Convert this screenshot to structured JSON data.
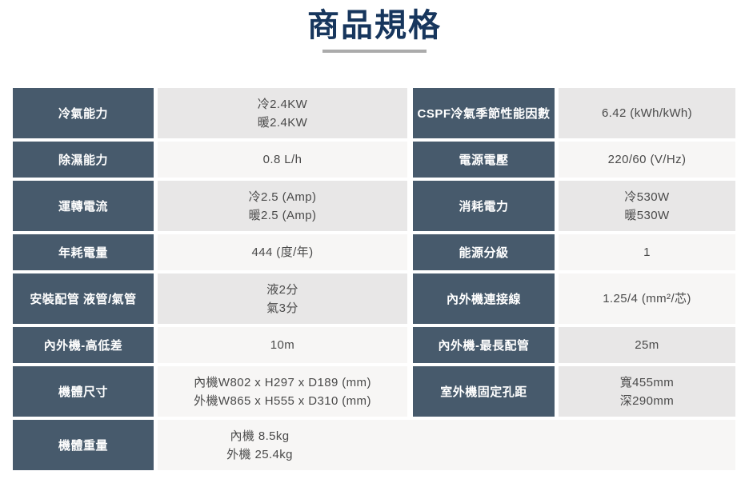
{
  "title": "商品規格",
  "colors": {
    "title_color": "#17365d",
    "divider": "#ababab",
    "header_bg": "#475a6c",
    "header_text": "#ffffff",
    "row_gray": "#e8e7e7",
    "row_light": "#f7f6f5",
    "value_text": "#4a4a4a"
  },
  "spec_table": {
    "rows": [
      {
        "size": "tall",
        "left": {
          "label": "冷氣能力",
          "value": [
            "冷2.4KW",
            "暖2.4KW"
          ],
          "bg": "gray"
        },
        "right": {
          "label": "CSPF冷氣季節性能因數",
          "value": [
            "6.42 (kWh/kWh)"
          ],
          "bg": "gray"
        }
      },
      {
        "size": "short",
        "left": {
          "label": "除濕能力",
          "value": [
            "0.8 L/h"
          ],
          "bg": "light"
        },
        "right": {
          "label": "電源電壓",
          "value": [
            "220/60 (V/Hz)"
          ],
          "bg": "light"
        }
      },
      {
        "size": "tall",
        "left": {
          "label": "運轉電流",
          "value": [
            "冷2.5 (Amp)",
            "暖2.5 (Amp)"
          ],
          "bg": "gray"
        },
        "right": {
          "label": "消耗電力",
          "value": [
            "冷530W",
            "暖530W"
          ],
          "bg": "gray"
        }
      },
      {
        "size": "short",
        "left": {
          "label": "年耗電量",
          "value": [
            "444 (度/年)"
          ],
          "bg": "light"
        },
        "right": {
          "label": "能源分級",
          "value": [
            "1"
          ],
          "bg": "light"
        }
      },
      {
        "size": "tall",
        "left": {
          "label": "安裝配管 液管/氣管",
          "value": [
            "液2分",
            "氣3分"
          ],
          "bg": "gray"
        },
        "right": {
          "label": "內外機連接線",
          "value": [
            "1.25/4 (mm²/芯)"
          ],
          "bg": "light"
        }
      },
      {
        "size": "short",
        "left": {
          "label": "內外機-高低差",
          "value": [
            "10m"
          ],
          "bg": "light"
        },
        "right": {
          "label": "內外機-最長配管",
          "value": [
            "25m"
          ],
          "bg": "gray"
        }
      },
      {
        "size": "tall",
        "left": {
          "label": "機體尺寸",
          "value": [
            "內機W802 x H297 x D189 (mm)",
            "外機W865 x H555 x D310 (mm)"
          ],
          "bg": "light"
        },
        "right": {
          "label": "室外機固定孔距",
          "value": [
            "寬455mm",
            "深290mm"
          ],
          "bg": "gray"
        }
      },
      {
        "size": "tall",
        "left": {
          "label": "機體重量",
          "value": [
            "內機 8.5kg",
            "外機 25.4kg"
          ],
          "bg": "light",
          "wide": true
        },
        "right": null
      }
    ]
  }
}
